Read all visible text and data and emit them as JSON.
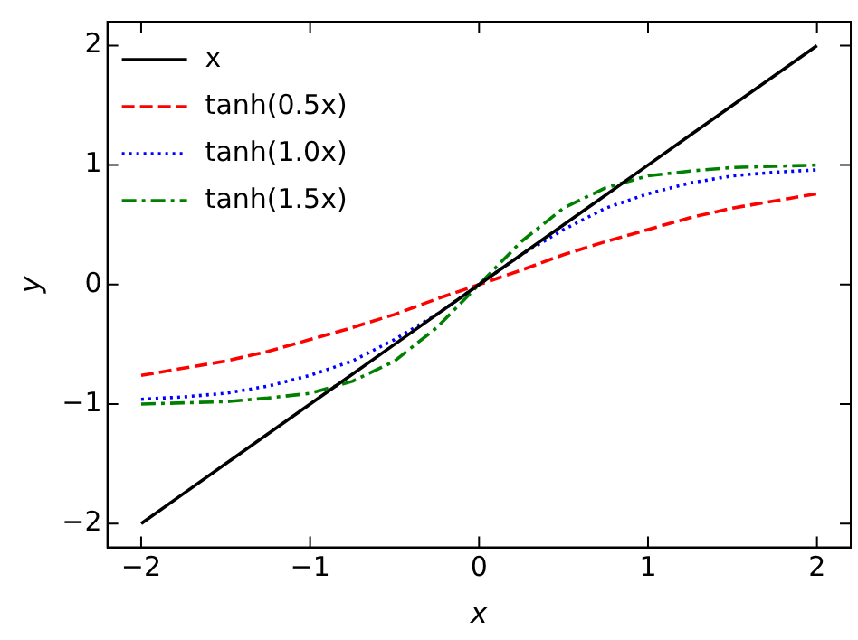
{
  "chart_data": {
    "type": "line",
    "xlabel": "x",
    "ylabel": "y",
    "x": [
      -2,
      -1.75,
      -1.5,
      -1.25,
      -1,
      -0.75,
      -0.5,
      -0.25,
      0,
      0.25,
      0.5,
      0.75,
      1,
      1.25,
      1.5,
      1.75,
      2
    ],
    "series": [
      {
        "name": "x",
        "color": "#000000",
        "line_style": "solid",
        "values": [
          -2,
          -1.75,
          -1.5,
          -1.25,
          -1,
          -0.75,
          -0.5,
          -0.25,
          0,
          0.25,
          0.5,
          0.75,
          1,
          1.25,
          1.5,
          1.75,
          2
        ]
      },
      {
        "name": "tanh(0.5x)",
        "color": "#ff0000",
        "line_style": "dashed",
        "values": [
          -0.76,
          -0.7,
          -0.64,
          -0.56,
          -0.46,
          -0.36,
          -0.25,
          -0.12,
          0,
          0.12,
          0.25,
          0.36,
          0.46,
          0.56,
          0.64,
          0.7,
          0.76
        ]
      },
      {
        "name": "tanh(1.0x)",
        "color": "#0000ff",
        "line_style": "dotted",
        "values": [
          -0.96,
          -0.94,
          -0.91,
          -0.85,
          -0.76,
          -0.64,
          -0.46,
          -0.25,
          0,
          0.25,
          0.46,
          0.64,
          0.76,
          0.85,
          0.91,
          0.94,
          0.96
        ]
      },
      {
        "name": "tanh(1.5x)",
        "color": "#008000",
        "line_style": "dashdot",
        "values": [
          -1,
          -0.99,
          -0.98,
          -0.95,
          -0.91,
          -0.81,
          -0.64,
          -0.36,
          0,
          0.36,
          0.64,
          0.81,
          0.91,
          0.95,
          0.98,
          0.99,
          1
        ]
      }
    ],
    "xlim": [
      -2.2,
      2.2
    ],
    "ylim": [
      -2.2,
      2.2
    ],
    "xticks": [
      {
        "value": -2,
        "label": "−2"
      },
      {
        "value": -1,
        "label": "−1"
      },
      0,
      1,
      2
    ],
    "yticks": [
      {
        "value": -2,
        "label": "−2"
      },
      {
        "value": -1,
        "label": "−1"
      },
      0,
      1,
      2
    ],
    "grid": false,
    "legend": "top left",
    "marker": "none"
  }
}
